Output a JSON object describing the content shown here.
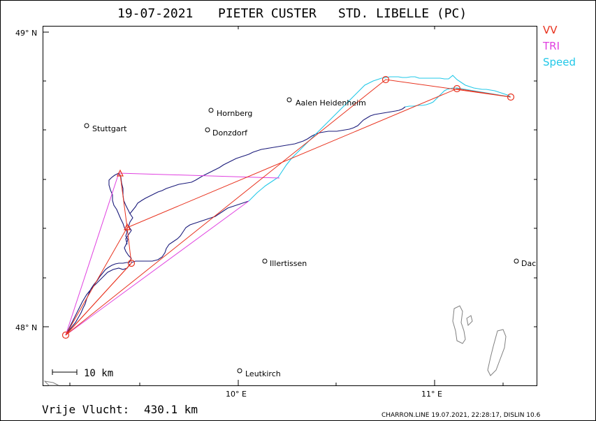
{
  "header": {
    "date": "19-07-2021",
    "pilot": "PIETER CUSTER",
    "glider": "STD. LIBELLE (PC)"
  },
  "legend": [
    {
      "label": "VV",
      "color": "#e8321e"
    },
    {
      "label": "TRI",
      "color": "#e040e0"
    },
    {
      "label": "Speed",
      "color": "#22c8e8"
    }
  ],
  "axes": {
    "lat_labels": [
      "49° N",
      "48° N"
    ],
    "lon_labels": [
      "10° E",
      "11° E"
    ]
  },
  "places": [
    {
      "name": "Stuttgart"
    },
    {
      "name": "Hornberg"
    },
    {
      "name": "Donzdorf"
    },
    {
      "name": "Aalen Heidenheim"
    },
    {
      "name": "Illertissen"
    },
    {
      "name": "Leutkirch"
    },
    {
      "name": "Dac"
    }
  ],
  "scale": {
    "label": "10 km"
  },
  "result": {
    "label": "Vrije Vlucht:",
    "value": "430.1 km"
  },
  "footer": "CHARRON.LINE 19.07.2021, 22:28:17, DISLIN 10.6",
  "colors": {
    "track": "#1a1a7a",
    "vv": "#e8321e",
    "tri": "#e040e0",
    "speed": "#22c8e8",
    "frame": "#000000",
    "lakes": "#808080"
  }
}
